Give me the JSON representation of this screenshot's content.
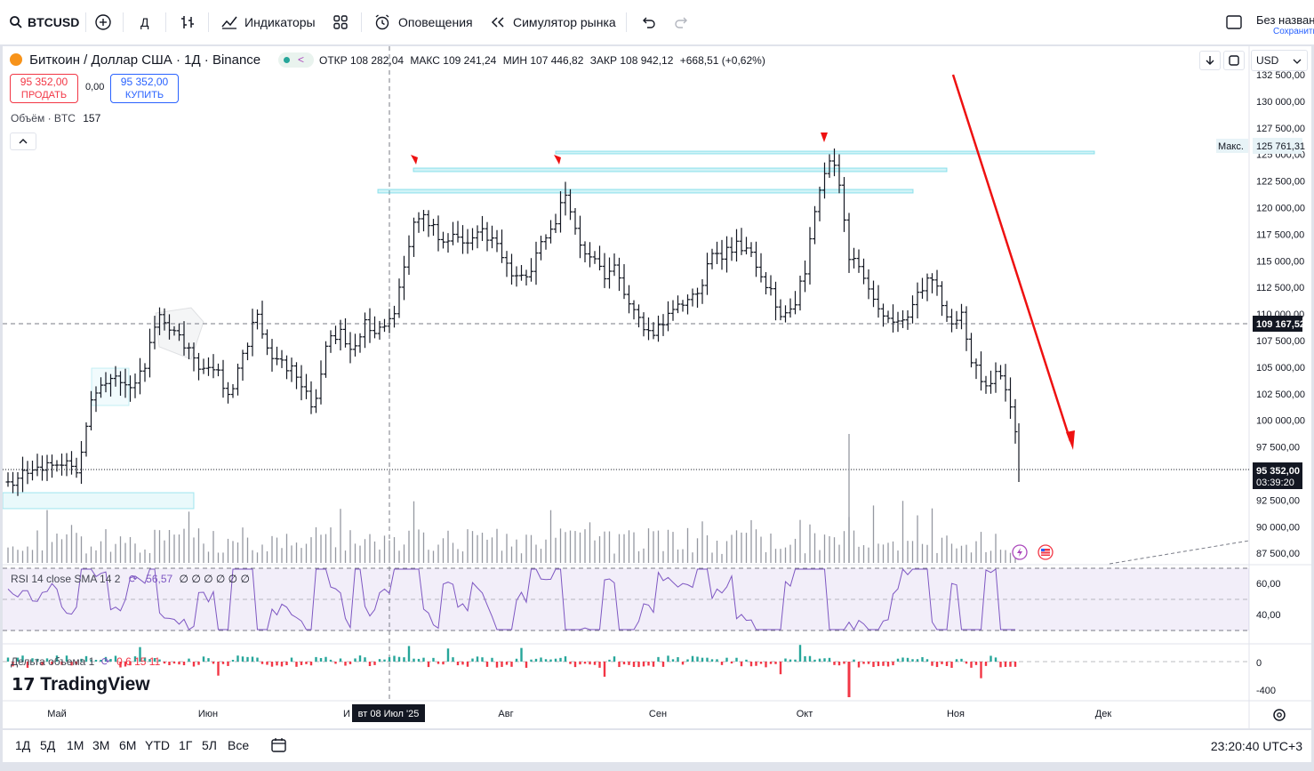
{
  "toolbar": {
    "symbol": "BTCUSD",
    "interval": "Д",
    "indicators": "Индикаторы",
    "alerts": "Оповещения",
    "replay": "Симулятор рынка",
    "layout_name": "Без назван",
    "layout_sub": "Сохранить"
  },
  "legend": {
    "title": "Биткоин / Доллар США · 1Д · Binance",
    "open_label": "ОТКР",
    "open": "108 282,04",
    "high_label": "МАКС",
    "high": "109 241,24",
    "low_label": "МИН",
    "low": "107 446,82",
    "close_label": "ЗАКР",
    "close": "108 942,12",
    "change": "+668,51 (+0,62%)",
    "sell_price": "95 352,00",
    "sell_label": "ПРОДАТЬ",
    "spread": "0,00",
    "buy_price": "95 352,00",
    "buy_label": "КУПИТЬ",
    "volume_label": "Объём · BTC",
    "volume": "157",
    "rsi_label": "RSI 14 close SMA 14 2",
    "rsi_value": "56,57",
    "rsi_nan": "∅ ∅ ∅ ∅ ∅ ∅",
    "delta_label": "Дельта объема 1",
    "delta_values": "0 6 15 11"
  },
  "currency": "USD",
  "price_axis": {
    "ticks": [
      "132 500,00",
      "130 000,00",
      "127 500,00",
      "125 000,00",
      "122 500,00",
      "120 000,00",
      "117 500,00",
      "115 000,00",
      "112 500,00",
      "110 000,00",
      "107 500,00",
      "105 000,00",
      "102 500,00",
      "100 000,00",
      "97 500,00",
      "95 000,00",
      "92 500,00",
      "90 000,00",
      "87 500,00"
    ],
    "max_label": "Макс.",
    "max_value": "125 761,31",
    "crosshair_value": "109 167,52",
    "last_price": "95 352,00",
    "countdown": "03:39:20"
  },
  "rsi_axis": [
    "60,00",
    "40,00"
  ],
  "delta_axis": [
    "0",
    "-400"
  ],
  "time_axis": {
    "months": [
      "Май",
      "Июн",
      "И",
      "Авг",
      "Сен",
      "Окт",
      "Ноя",
      "Дек"
    ],
    "crosshair_date": "вт 08 Июл '25"
  },
  "brand": "TradingView",
  "timeframes": [
    "1Д",
    "5Д",
    "1М",
    "3М",
    "6М",
    "YTD",
    "1Г",
    "5Л",
    "Все"
  ],
  "clock": "23:20:40 UTC+3",
  "colors": {
    "accent": "#2962ff",
    "sell": "#f23645",
    "buy": "#2962ff",
    "arrow": "#ee1111",
    "rsi": "#7e57c2",
    "delta_up": "#26a69a",
    "delta_down": "#f23645",
    "zone": "#4dd0e1"
  }
}
